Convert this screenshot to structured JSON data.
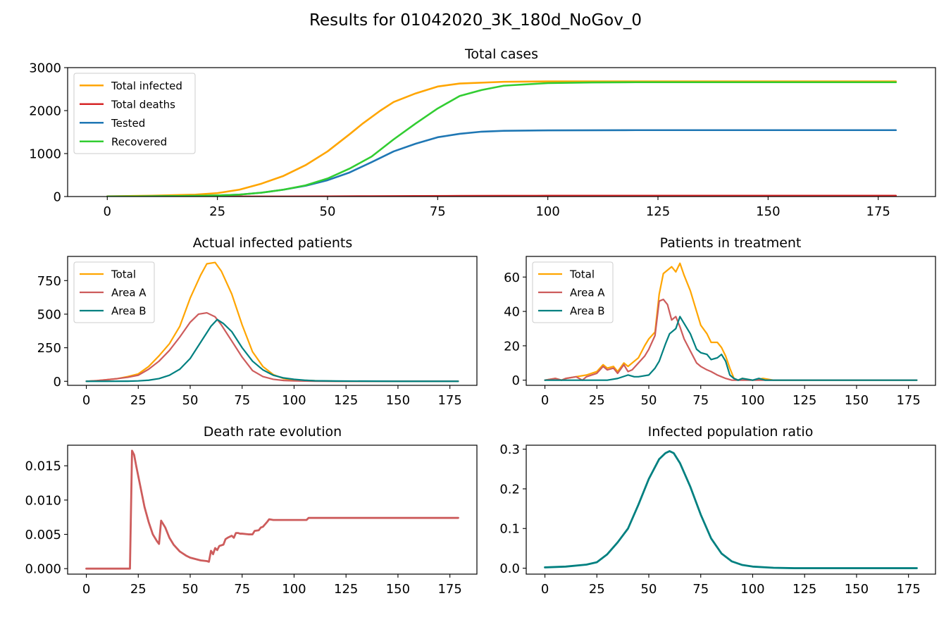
{
  "suptitle": "Results for 01042020_3K_180d_NoGov_0",
  "colors": {
    "orange": "#ffa500",
    "red": "#d62728",
    "blue": "#1f77b4",
    "green": "#32cd32",
    "indianred": "#cd5c5c",
    "teal": "#008080"
  },
  "chart_data": [
    {
      "id": "total-cases",
      "type": "line",
      "title": "Total cases",
      "xlim": [
        -9,
        188
      ],
      "ylim": [
        0,
        3000
      ],
      "xticks": [
        0,
        25,
        50,
        75,
        100,
        125,
        150,
        175
      ],
      "yticks": [
        0,
        1000,
        2000,
        3000
      ],
      "legend": "top-left",
      "series": [
        {
          "name": "Total infected",
          "color": "#ffa500",
          "x": [
            0,
            10,
            20,
            25,
            30,
            35,
            40,
            45,
            50,
            55,
            58,
            62,
            65,
            70,
            75,
            80,
            90,
            100,
            120,
            150,
            179
          ],
          "y": [
            5,
            20,
            45,
            80,
            160,
            300,
            480,
            730,
            1050,
            1450,
            1700,
            2000,
            2200,
            2400,
            2560,
            2630,
            2670,
            2680,
            2680,
            2680,
            2680
          ]
        },
        {
          "name": "Total deaths",
          "color": "#d62728",
          "x": [
            0,
            20,
            30,
            40,
            50,
            60,
            70,
            80,
            90,
            100,
            120,
            150,
            179
          ],
          "y": [
            0,
            0,
            1,
            2,
            4,
            8,
            12,
            15,
            17,
            19,
            20,
            20,
            20
          ]
        },
        {
          "name": "Tested",
          "color": "#1f77b4",
          "x": [
            0,
            10,
            20,
            25,
            30,
            35,
            40,
            45,
            50,
            55,
            60,
            65,
            70,
            75,
            80,
            85,
            90,
            100,
            120,
            150,
            179
          ],
          "y": [
            0,
            5,
            15,
            25,
            45,
            90,
            160,
            250,
            380,
            560,
            800,
            1050,
            1230,
            1380,
            1460,
            1510,
            1530,
            1540,
            1545,
            1545,
            1545
          ]
        },
        {
          "name": "Recovered",
          "color": "#32cd32",
          "x": [
            0,
            10,
            20,
            25,
            30,
            35,
            40,
            45,
            50,
            55,
            60,
            65,
            70,
            75,
            80,
            85,
            90,
            100,
            110,
            120,
            150,
            179
          ],
          "y": [
            0,
            5,
            15,
            25,
            45,
            90,
            160,
            260,
            420,
            650,
            930,
            1330,
            1700,
            2050,
            2340,
            2480,
            2580,
            2640,
            2655,
            2660,
            2660,
            2660
          ]
        }
      ]
    },
    {
      "id": "actual-infected",
      "type": "line",
      "title": "Actual infected patients",
      "xlim": [
        -9,
        188
      ],
      "ylim": [
        -30,
        930
      ],
      "xticks": [
        0,
        25,
        50,
        75,
        100,
        125,
        150,
        175
      ],
      "yticks": [
        0,
        250,
        500,
        750
      ],
      "legend": "top-left",
      "series": [
        {
          "name": "Total",
          "color": "#ffa500",
          "x": [
            0,
            5,
            10,
            15,
            20,
            25,
            30,
            35,
            40,
            45,
            50,
            55,
            58,
            62,
            65,
            70,
            75,
            80,
            85,
            90,
            95,
            100,
            110,
            120,
            150,
            179
          ],
          "y": [
            0,
            5,
            12,
            20,
            35,
            55,
            110,
            190,
            280,
            410,
            620,
            790,
            875,
            885,
            820,
            650,
            420,
            220,
            110,
            50,
            20,
            10,
            4,
            1,
            0,
            0
          ]
        },
        {
          "name": "Area A",
          "color": "#cd5c5c",
          "x": [
            0,
            5,
            10,
            15,
            20,
            25,
            30,
            35,
            40,
            45,
            50,
            54,
            58,
            62,
            65,
            70,
            75,
            80,
            85,
            90,
            95,
            100,
            110,
            120,
            150,
            179
          ],
          "y": [
            0,
            5,
            12,
            20,
            30,
            45,
            90,
            150,
            230,
            330,
            440,
            500,
            510,
            480,
            420,
            300,
            180,
            80,
            35,
            15,
            6,
            3,
            1,
            0,
            0,
            0
          ]
        },
        {
          "name": "Area B",
          "color": "#008080",
          "x": [
            0,
            10,
            20,
            25,
            30,
            35,
            40,
            45,
            50,
            55,
            60,
            63,
            66,
            70,
            75,
            80,
            85,
            90,
            95,
            100,
            105,
            110,
            120,
            150,
            179
          ],
          "y": [
            0,
            0,
            1,
            3,
            8,
            20,
            45,
            90,
            170,
            290,
            410,
            460,
            430,
            370,
            250,
            150,
            85,
            45,
            25,
            15,
            8,
            4,
            2,
            0,
            0
          ]
        }
      ]
    },
    {
      "id": "patients-treatment",
      "type": "line",
      "title": "Patients in treatment",
      "xlim": [
        -9,
        188
      ],
      "ylim": [
        -3,
        72
      ],
      "xticks": [
        0,
        25,
        50,
        75,
        100,
        125,
        150,
        175
      ],
      "yticks": [
        0,
        20,
        40,
        60
      ],
      "legend": "top-left",
      "series": [
        {
          "name": "Total",
          "color": "#ffa500",
          "x": [
            0,
            5,
            8,
            10,
            15,
            20,
            25,
            28,
            30,
            33,
            35,
            38,
            40,
            45,
            48,
            50,
            53,
            55,
            57,
            59,
            61,
            63,
            65,
            67,
            70,
            73,
            75,
            78,
            80,
            83,
            85,
            87,
            89,
            91,
            93,
            95,
            100,
            105,
            110,
            150,
            179
          ],
          "y": [
            0,
            1,
            0,
            1,
            2,
            3,
            5,
            9,
            7,
            8,
            5,
            10,
            8,
            13,
            20,
            24,
            28,
            50,
            62,
            64,
            66,
            63,
            68,
            61,
            52,
            40,
            32,
            27,
            22,
            22,
            19,
            14,
            7,
            1,
            0,
            1,
            0,
            1,
            0,
            0,
            0
          ]
        },
        {
          "name": "Area A",
          "color": "#cd5c5c",
          "x": [
            0,
            5,
            8,
            10,
            15,
            18,
            20,
            25,
            28,
            30,
            33,
            35,
            38,
            40,
            42,
            45,
            48,
            50,
            53,
            55,
            57,
            59,
            61,
            63,
            65,
            67,
            70,
            73,
            75,
            78,
            80,
            83,
            85,
            87,
            90,
            100,
            150,
            179
          ],
          "y": [
            0,
            1,
            0,
            1,
            2,
            0,
            2,
            4,
            8,
            6,
            7,
            4,
            9,
            5,
            6,
            10,
            14,
            18,
            26,
            46,
            47,
            44,
            35,
            37,
            31,
            24,
            17,
            10,
            8,
            6,
            5,
            3,
            2,
            1,
            0,
            0,
            0,
            0
          ]
        },
        {
          "name": "Area B",
          "color": "#008080",
          "x": [
            0,
            30,
            35,
            40,
            43,
            45,
            50,
            53,
            55,
            58,
            60,
            63,
            65,
            67,
            70,
            73,
            75,
            78,
            80,
            83,
            85,
            87,
            89,
            91,
            93,
            95,
            100,
            103,
            106,
            110,
            150,
            179
          ],
          "y": [
            0,
            0,
            1,
            3,
            2,
            2,
            3,
            7,
            11,
            21,
            27,
            30,
            37,
            33,
            27,
            18,
            16,
            15,
            12,
            13,
            15,
            11,
            3,
            1,
            0,
            1,
            0,
            1,
            0,
            0,
            0,
            0
          ]
        }
      ]
    },
    {
      "id": "death-rate",
      "type": "line",
      "title": "Death rate evolution",
      "xlim": [
        -9,
        188
      ],
      "ylim": [
        -0.0008,
        0.018
      ],
      "xticks": [
        0,
        25,
        50,
        75,
        100,
        125,
        150,
        175
      ],
      "yticks": [
        0.0,
        0.005,
        0.01,
        0.015
      ],
      "ytick_labels": [
        "0.000",
        "0.005",
        "0.010",
        "0.015"
      ],
      "series": [
        {
          "name": "",
          "color": "#cd5c5c",
          "x": [
            0,
            20,
            21,
            22,
            23,
            24,
            26,
            28,
            30,
            32,
            34,
            35,
            36,
            38,
            40,
            42,
            45,
            48,
            50,
            55,
            58,
            59,
            60,
            61,
            62,
            63,
            64,
            66,
            67,
            68,
            70,
            71,
            72,
            73,
            74,
            75,
            78,
            80,
            81,
            83,
            84,
            85,
            87,
            88,
            90,
            100,
            105,
            106,
            107,
            110,
            120,
            150,
            179
          ],
          "y": [
            0,
            0,
            0,
            0.0172,
            0.0166,
            0.015,
            0.012,
            0.009,
            0.0068,
            0.005,
            0.004,
            0.0036,
            0.007,
            0.006,
            0.0045,
            0.0035,
            0.0025,
            0.0019,
            0.0016,
            0.0012,
            0.0011,
            0.001,
            0.0026,
            0.0021,
            0.003,
            0.0027,
            0.0033,
            0.0035,
            0.0043,
            0.0045,
            0.0048,
            0.0045,
            0.0052,
            0.0052,
            0.0051,
            0.0051,
            0.005,
            0.005,
            0.0055,
            0.0056,
            0.006,
            0.0061,
            0.0068,
            0.0072,
            0.0071,
            0.0071,
            0.0071,
            0.0071,
            0.0074,
            0.0074,
            0.0074,
            0.0074,
            0.0074
          ]
        }
      ]
    },
    {
      "id": "infected-ratio",
      "type": "line",
      "title": "Infected population ratio",
      "xlim": [
        -9,
        188
      ],
      "ylim": [
        -0.015,
        0.31
      ],
      "xticks": [
        0,
        25,
        50,
        75,
        100,
        125,
        150,
        175
      ],
      "yticks": [
        0.0,
        0.1,
        0.2,
        0.3
      ],
      "ytick_labels": [
        "0.0",
        "0.1",
        "0.2",
        "0.3"
      ],
      "series": [
        {
          "name": "",
          "color": "#008080",
          "x": [
            0,
            10,
            20,
            25,
            30,
            35,
            40,
            45,
            50,
            55,
            58,
            60,
            62,
            65,
            70,
            75,
            80,
            85,
            90,
            95,
            100,
            110,
            120,
            150,
            179
          ],
          "y": [
            0.002,
            0.004,
            0.009,
            0.015,
            0.035,
            0.065,
            0.1,
            0.16,
            0.225,
            0.275,
            0.29,
            0.295,
            0.29,
            0.265,
            0.205,
            0.135,
            0.075,
            0.037,
            0.017,
            0.008,
            0.004,
            0.001,
            0,
            0,
            0
          ]
        }
      ]
    }
  ]
}
